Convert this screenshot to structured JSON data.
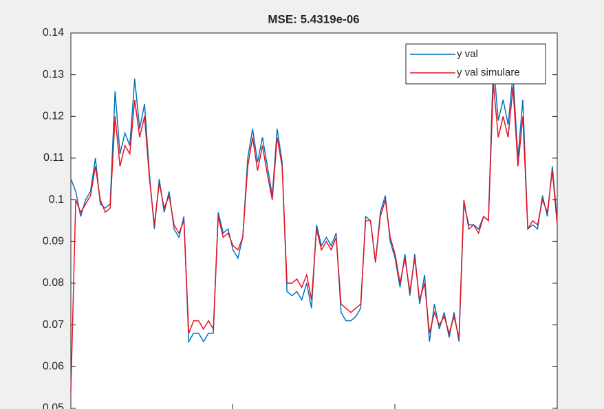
{
  "chart_data": {
    "type": "line",
    "title": "MSE: 5.4319e-06",
    "ylim": [
      0.05,
      0.14
    ],
    "yticks": [
      0.05,
      0.06,
      0.07,
      0.08,
      0.09,
      0.1,
      0.11,
      0.12,
      0.13,
      0.14
    ],
    "legend": "upper right",
    "series": [
      {
        "name": "y val",
        "color": "#0072bd",
        "values": [
          0.105,
          0.102,
          0.096,
          0.1,
          0.102,
          0.11,
          0.099,
          0.098,
          0.099,
          0.126,
          0.111,
          0.116,
          0.113,
          0.129,
          0.117,
          0.123,
          0.106,
          0.093,
          0.105,
          0.097,
          0.102,
          0.093,
          0.091,
          0.096,
          0.066,
          0.068,
          0.068,
          0.066,
          0.068,
          0.068,
          0.097,
          0.092,
          0.093,
          0.088,
          0.086,
          0.091,
          0.11,
          0.117,
          0.109,
          0.115,
          0.108,
          0.101,
          0.117,
          0.109,
          0.078,
          0.077,
          0.078,
          0.076,
          0.08,
          0.074,
          0.094,
          0.089,
          0.091,
          0.089,
          0.092,
          0.073,
          0.071,
          0.071,
          0.072,
          0.074,
          0.096,
          0.095,
          0.085,
          0.097,
          0.101,
          0.09,
          0.086,
          0.079,
          0.087,
          0.077,
          0.087,
          0.075,
          0.082,
          0.066,
          0.075,
          0.069,
          0.073,
          0.067,
          0.073,
          0.066,
          0.099,
          0.094,
          0.094,
          0.093,
          0.096,
          0.095,
          0.133,
          0.119,
          0.124,
          0.118,
          0.13,
          0.11,
          0.124,
          0.093,
          0.094,
          0.093,
          0.101,
          0.096,
          0.108,
          0.095
        ]
      },
      {
        "name": "y val simulare",
        "color": "#e8121e",
        "values": [
          0.054,
          0.1,
          0.097,
          0.099,
          0.101,
          0.108,
          0.1,
          0.097,
          0.098,
          0.12,
          0.108,
          0.113,
          0.111,
          0.124,
          0.115,
          0.12,
          0.105,
          0.094,
          0.104,
          0.098,
          0.101,
          0.094,
          0.092,
          0.095,
          0.068,
          0.071,
          0.071,
          0.069,
          0.071,
          0.069,
          0.096,
          0.091,
          0.092,
          0.089,
          0.088,
          0.091,
          0.108,
          0.115,
          0.107,
          0.113,
          0.106,
          0.1,
          0.115,
          0.108,
          0.08,
          0.08,
          0.081,
          0.079,
          0.082,
          0.076,
          0.093,
          0.088,
          0.09,
          0.088,
          0.091,
          0.075,
          0.074,
          0.073,
          0.074,
          0.075,
          0.095,
          0.095,
          0.085,
          0.096,
          0.1,
          0.091,
          0.087,
          0.08,
          0.086,
          0.078,
          0.086,
          0.076,
          0.08,
          0.068,
          0.073,
          0.07,
          0.072,
          0.068,
          0.072,
          0.067,
          0.1,
          0.093,
          0.094,
          0.092,
          0.096,
          0.095,
          0.128,
          0.115,
          0.12,
          0.115,
          0.127,
          0.108,
          0.12,
          0.093,
          0.095,
          0.094,
          0.1,
          0.097,
          0.107,
          0.094
        ]
      }
    ]
  }
}
